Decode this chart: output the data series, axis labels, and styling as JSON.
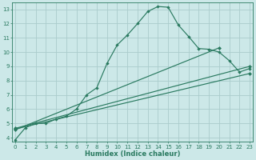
{
  "xlabel": "Humidex (Indice chaleur)",
  "bg_color": "#cce8e8",
  "grid_color": "#aacccc",
  "line_color": "#2a7a60",
  "xlim": [
    -0.3,
    23.3
  ],
  "ylim": [
    3.7,
    13.5
  ],
  "xticks": [
    0,
    1,
    2,
    3,
    4,
    5,
    6,
    7,
    8,
    9,
    10,
    11,
    12,
    13,
    14,
    15,
    16,
    17,
    18,
    19,
    20,
    21,
    22,
    23
  ],
  "yticks": [
    4,
    5,
    6,
    7,
    8,
    9,
    10,
    11,
    12,
    13
  ],
  "curve_x": [
    0,
    1,
    2,
    3,
    4,
    5,
    6,
    7,
    8,
    9,
    10,
    11,
    12,
    13,
    14,
    15,
    16,
    17,
    18,
    19,
    20,
    21,
    22,
    23
  ],
  "curve_y": [
    3.85,
    4.7,
    5.0,
    5.0,
    5.3,
    5.5,
    6.0,
    7.0,
    7.5,
    9.2,
    10.5,
    11.2,
    12.0,
    12.85,
    13.2,
    13.15,
    11.9,
    11.1,
    10.25,
    10.2,
    10.0,
    9.4,
    8.6,
    8.85
  ],
  "line2_x": [
    0,
    20
  ],
  "line2_y": [
    4.55,
    10.3
  ],
  "line3_x": [
    0,
    23
  ],
  "line3_y": [
    4.6,
    8.5
  ],
  "line4_x": [
    0,
    23
  ],
  "line4_y": [
    4.65,
    9.0
  ],
  "marker_style": "D",
  "lw": 0.85,
  "ms_curve": 2.2,
  "ms_line": 2.5
}
